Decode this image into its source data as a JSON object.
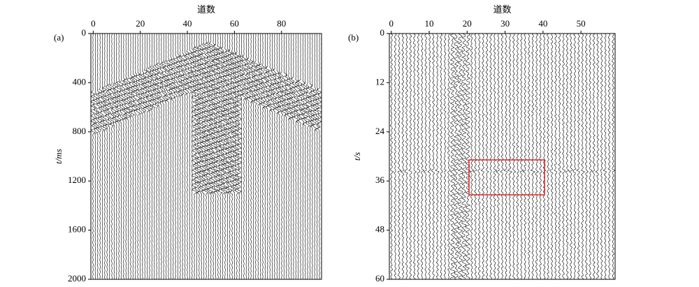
{
  "panels": [
    {
      "label": "(a)",
      "xlabel": "道数",
      "ylabel": "t/ms",
      "xlim": [
        -1,
        97
      ],
      "xticks": [
        0,
        20,
        40,
        60,
        80
      ],
      "ylim": [
        0,
        2000
      ],
      "yticks": [
        0,
        400,
        800,
        1200,
        1600,
        2000
      ]
    },
    {
      "label": "(b)",
      "xlabel": "道数",
      "ylabel": "t/s",
      "xlim": [
        -0.5,
        59
      ],
      "xticks": [
        0,
        10,
        20,
        30,
        40,
        50
      ],
      "ylim": [
        0,
        60
      ],
      "yticks": [
        0,
        12,
        24,
        36,
        48,
        60
      ]
    }
  ]
}
